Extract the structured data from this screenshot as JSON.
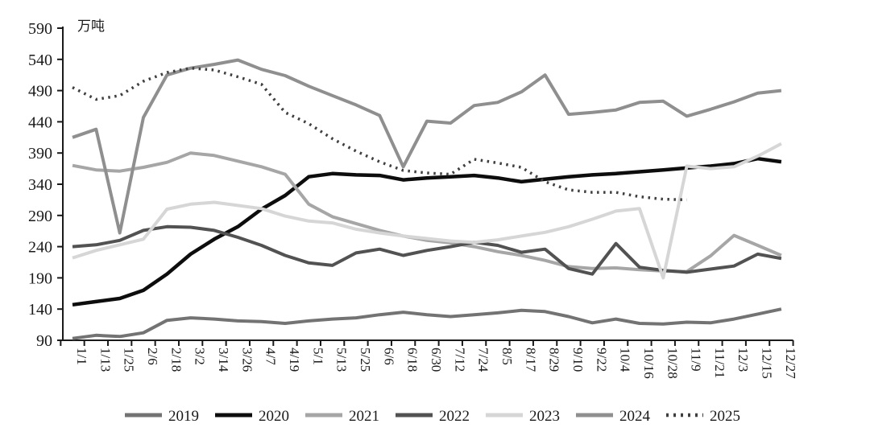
{
  "chart_data": {
    "type": "line",
    "unit_label": "万吨",
    "xlabels": [
      "1/1",
      "1/13",
      "1/25",
      "2/6",
      "2/18",
      "3/2",
      "3/14",
      "3/26",
      "4/7",
      "4/19",
      "5/1",
      "5/13",
      "5/25",
      "6/6",
      "6/18",
      "6/30",
      "7/12",
      "7/24",
      "8/5",
      "8/17",
      "8/29",
      "9/10",
      "9/22",
      "10/4",
      "10/16",
      "10/28",
      "11/9",
      "11/21",
      "12/3",
      "12/15",
      "12/27"
    ],
    "ylim": [
      90,
      590
    ],
    "y_step": 50,
    "y_ticks": [
      90,
      140,
      190,
      240,
      290,
      340,
      390,
      440,
      490,
      540,
      590
    ],
    "grid": false,
    "legend_position": "bottom",
    "series": [
      {
        "name": "2019",
        "color": "#737373",
        "style": "solid",
        "width": 4,
        "values": [
          93,
          98,
          96,
          102,
          122,
          126,
          124,
          121,
          120,
          117,
          121,
          124,
          126,
          131,
          135,
          131,
          128,
          131,
          134,
          138,
          136,
          128,
          118,
          124,
          117,
          116,
          119,
          118,
          124,
          132,
          140
        ]
      },
      {
        "name": "2020",
        "color": "#0d0d0d",
        "style": "solid",
        "width": 4.5,
        "values": [
          147,
          152,
          157,
          170,
          196,
          228,
          252,
          272,
          300,
          322,
          352,
          357,
          355,
          354,
          347,
          350,
          352,
          354,
          350,
          344,
          348,
          352,
          355,
          357,
          360,
          363,
          366,
          369,
          373,
          381,
          376
        ]
      },
      {
        "name": "2021",
        "color": "#a6a6a6",
        "style": "solid",
        "width": 4,
        "values": [
          370,
          363,
          361,
          367,
          375,
          390,
          386,
          377,
          368,
          356,
          308,
          288,
          277,
          266,
          257,
          250,
          246,
          240,
          232,
          226,
          218,
          208,
          205,
          206,
          203,
          201,
          200,
          225,
          258,
          242,
          226
        ]
      },
      {
        "name": "2022",
        "color": "#525252",
        "style": "solid",
        "width": 4,
        "values": [
          240,
          243,
          250,
          266,
          272,
          271,
          266,
          255,
          242,
          226,
          214,
          210,
          230,
          236,
          226,
          234,
          240,
          247,
          242,
          231,
          236,
          205,
          196,
          245,
          207,
          202,
          199,
          204,
          209,
          228,
          221
        ]
      },
      {
        "name": "2023",
        "color": "#d6d6d6",
        "style": "solid",
        "width": 4,
        "values": [
          222,
          234,
          243,
          252,
          300,
          308,
          311,
          306,
          301,
          289,
          281,
          278,
          268,
          262,
          257,
          253,
          249,
          247,
          251,
          257,
          263,
          272,
          284,
          297,
          301,
          190,
          369,
          365,
          368,
          385,
          405
        ]
      },
      {
        "name": "2024",
        "color": "#8f8f8f",
        "style": "solid",
        "width": 4,
        "values": [
          415,
          428,
          262,
          447,
          515,
          526,
          532,
          539,
          524,
          514,
          497,
          482,
          467,
          450,
          368,
          441,
          438,
          466,
          471,
          488,
          515,
          452,
          455,
          459,
          471,
          473,
          449,
          460,
          472,
          486,
          490
        ]
      },
      {
        "name": "2025",
        "color": "#3f3f3f",
        "style": "dotted",
        "width": 3.5,
        "values": [
          495,
          476,
          482,
          505,
          519,
          526,
          523,
          512,
          500,
          455,
          437,
          413,
          393,
          376,
          362,
          358,
          356,
          380,
          374,
          367,
          344,
          331,
          327,
          327,
          320,
          316,
          315,
          null,
          null,
          null,
          null
        ]
      }
    ]
  }
}
